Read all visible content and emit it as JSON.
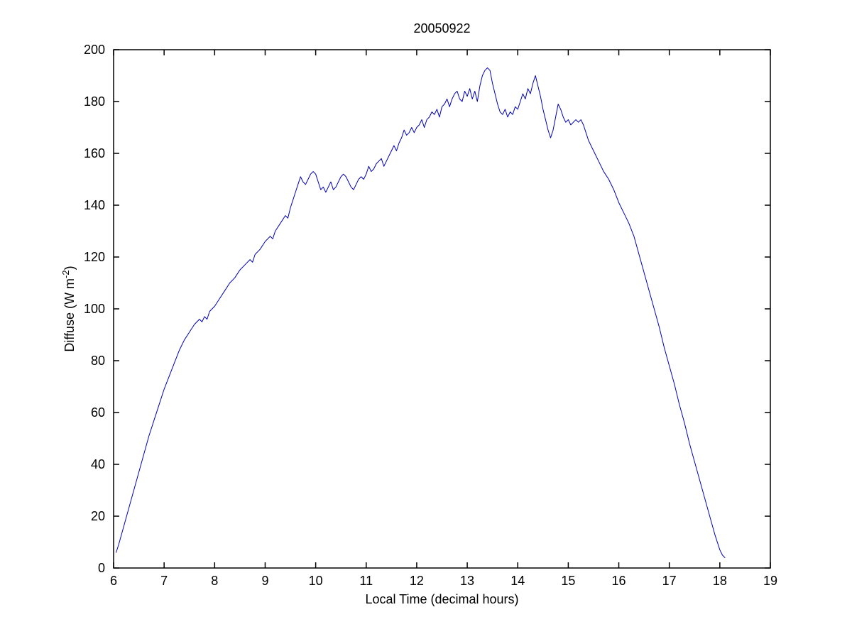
{
  "figure": {
    "title": "20050922",
    "xlabel": "Local Time (decimal hours)",
    "ylabel_pre": "Diffuse (W m",
    "ylabel_sup": "-2",
    "ylabel_post": ")"
  },
  "chart_data": {
    "type": "line",
    "title": "20050922",
    "xlabel": "Local Time (decimal hours)",
    "ylabel": "Diffuse (W m^-2)",
    "xlim": [
      6,
      19
    ],
    "ylim": [
      0,
      200
    ],
    "xticks": [
      6,
      7,
      8,
      9,
      10,
      11,
      12,
      13,
      14,
      15,
      16,
      17,
      18,
      19
    ],
    "yticks": [
      0,
      20,
      40,
      60,
      80,
      100,
      120,
      140,
      160,
      180,
      200
    ],
    "grid": false,
    "legend": null,
    "line_color": "#0000bb",
    "axis_color": "#000000",
    "series": [
      {
        "name": "Diffuse",
        "points": [
          [
            6.05,
            6
          ],
          [
            6.1,
            9
          ],
          [
            6.2,
            16
          ],
          [
            6.3,
            23
          ],
          [
            6.4,
            30
          ],
          [
            6.5,
            37
          ],
          [
            6.6,
            44
          ],
          [
            6.7,
            51
          ],
          [
            6.8,
            57
          ],
          [
            6.9,
            63
          ],
          [
            7.0,
            69
          ],
          [
            7.1,
            74
          ],
          [
            7.2,
            79
          ],
          [
            7.3,
            84
          ],
          [
            7.4,
            88
          ],
          [
            7.5,
            91
          ],
          [
            7.6,
            94
          ],
          [
            7.7,
            96
          ],
          [
            7.75,
            95
          ],
          [
            7.8,
            97
          ],
          [
            7.85,
            96
          ],
          [
            7.9,
            99
          ],
          [
            8.0,
            101
          ],
          [
            8.1,
            104
          ],
          [
            8.2,
            107
          ],
          [
            8.3,
            110
          ],
          [
            8.4,
            112
          ],
          [
            8.5,
            115
          ],
          [
            8.6,
            117
          ],
          [
            8.7,
            119
          ],
          [
            8.75,
            118
          ],
          [
            8.8,
            121
          ],
          [
            8.9,
            123
          ],
          [
            9.0,
            126
          ],
          [
            9.1,
            128
          ],
          [
            9.15,
            127
          ],
          [
            9.2,
            130
          ],
          [
            9.3,
            133
          ],
          [
            9.4,
            136
          ],
          [
            9.45,
            135
          ],
          [
            9.5,
            139
          ],
          [
            9.55,
            142
          ],
          [
            9.6,
            145
          ],
          [
            9.65,
            148
          ],
          [
            9.7,
            151
          ],
          [
            9.75,
            149
          ],
          [
            9.8,
            148
          ],
          [
            9.85,
            150
          ],
          [
            9.9,
            152
          ],
          [
            9.95,
            153
          ],
          [
            10.0,
            152
          ],
          [
            10.05,
            149
          ],
          [
            10.1,
            146
          ],
          [
            10.15,
            147
          ],
          [
            10.2,
            145
          ],
          [
            10.25,
            147
          ],
          [
            10.3,
            149
          ],
          [
            10.35,
            146
          ],
          [
            10.4,
            147
          ],
          [
            10.45,
            149
          ],
          [
            10.5,
            151
          ],
          [
            10.55,
            152
          ],
          [
            10.6,
            151
          ],
          [
            10.65,
            149
          ],
          [
            10.7,
            147
          ],
          [
            10.75,
            146
          ],
          [
            10.8,
            148
          ],
          [
            10.85,
            150
          ],
          [
            10.9,
            151
          ],
          [
            10.95,
            150
          ],
          [
            11.0,
            152
          ],
          [
            11.05,
            155
          ],
          [
            11.1,
            153
          ],
          [
            11.15,
            154
          ],
          [
            11.2,
            156
          ],
          [
            11.25,
            157
          ],
          [
            11.3,
            158
          ],
          [
            11.35,
            155
          ],
          [
            11.4,
            157
          ],
          [
            11.45,
            159
          ],
          [
            11.5,
            161
          ],
          [
            11.55,
            163
          ],
          [
            11.6,
            161
          ],
          [
            11.65,
            164
          ],
          [
            11.7,
            166
          ],
          [
            11.75,
            169
          ],
          [
            11.8,
            167
          ],
          [
            11.85,
            168
          ],
          [
            11.9,
            170
          ],
          [
            11.95,
            168
          ],
          [
            12.0,
            170
          ],
          [
            12.05,
            171
          ],
          [
            12.1,
            173
          ],
          [
            12.15,
            170
          ],
          [
            12.2,
            173
          ],
          [
            12.25,
            174
          ],
          [
            12.3,
            176
          ],
          [
            12.35,
            175
          ],
          [
            12.4,
            177
          ],
          [
            12.45,
            174
          ],
          [
            12.5,
            178
          ],
          [
            12.55,
            179
          ],
          [
            12.6,
            181
          ],
          [
            12.65,
            178
          ],
          [
            12.7,
            181
          ],
          [
            12.75,
            183
          ],
          [
            12.8,
            184
          ],
          [
            12.85,
            181
          ],
          [
            12.9,
            180
          ],
          [
            12.95,
            184
          ],
          [
            13.0,
            182
          ],
          [
            13.05,
            185
          ],
          [
            13.1,
            181
          ],
          [
            13.15,
            184
          ],
          [
            13.2,
            180
          ],
          [
            13.25,
            186
          ],
          [
            13.3,
            190
          ],
          [
            13.35,
            192
          ],
          [
            13.4,
            193
          ],
          [
            13.45,
            192
          ],
          [
            13.5,
            187
          ],
          [
            13.55,
            183
          ],
          [
            13.6,
            179
          ],
          [
            13.65,
            176
          ],
          [
            13.7,
            175
          ],
          [
            13.75,
            177
          ],
          [
            13.8,
            174
          ],
          [
            13.85,
            176
          ],
          [
            13.9,
            175
          ],
          [
            13.95,
            178
          ],
          [
            14.0,
            177
          ],
          [
            14.05,
            180
          ],
          [
            14.1,
            183
          ],
          [
            14.15,
            181
          ],
          [
            14.2,
            185
          ],
          [
            14.25,
            183
          ],
          [
            14.3,
            187
          ],
          [
            14.35,
            190
          ],
          [
            14.4,
            186
          ],
          [
            14.45,
            182
          ],
          [
            14.5,
            177
          ],
          [
            14.55,
            173
          ],
          [
            14.6,
            169
          ],
          [
            14.65,
            166
          ],
          [
            14.7,
            169
          ],
          [
            14.75,
            174
          ],
          [
            14.8,
            179
          ],
          [
            14.85,
            177
          ],
          [
            14.9,
            174
          ],
          [
            14.95,
            172
          ],
          [
            15.0,
            173
          ],
          [
            15.05,
            171
          ],
          [
            15.1,
            172
          ],
          [
            15.15,
            173
          ],
          [
            15.2,
            172
          ],
          [
            15.25,
            173
          ],
          [
            15.3,
            171
          ],
          [
            15.35,
            168
          ],
          [
            15.4,
            165
          ],
          [
            15.45,
            163
          ],
          [
            15.5,
            161
          ],
          [
            15.6,
            157
          ],
          [
            15.7,
            153
          ],
          [
            15.8,
            150
          ],
          [
            15.9,
            146
          ],
          [
            16.0,
            141
          ],
          [
            16.1,
            137
          ],
          [
            16.2,
            133
          ],
          [
            16.3,
            128
          ],
          [
            16.4,
            121
          ],
          [
            16.5,
            114
          ],
          [
            16.6,
            107
          ],
          [
            16.7,
            100
          ],
          [
            16.8,
            93
          ],
          [
            16.9,
            85
          ],
          [
            17.0,
            78
          ],
          [
            17.1,
            71
          ],
          [
            17.2,
            63
          ],
          [
            17.3,
            56
          ],
          [
            17.4,
            48
          ],
          [
            17.5,
            41
          ],
          [
            17.6,
            34
          ],
          [
            17.7,
            27
          ],
          [
            17.8,
            20
          ],
          [
            17.9,
            13
          ],
          [
            18.0,
            7
          ],
          [
            18.05,
            5
          ],
          [
            18.1,
            4
          ]
        ]
      }
    ]
  }
}
